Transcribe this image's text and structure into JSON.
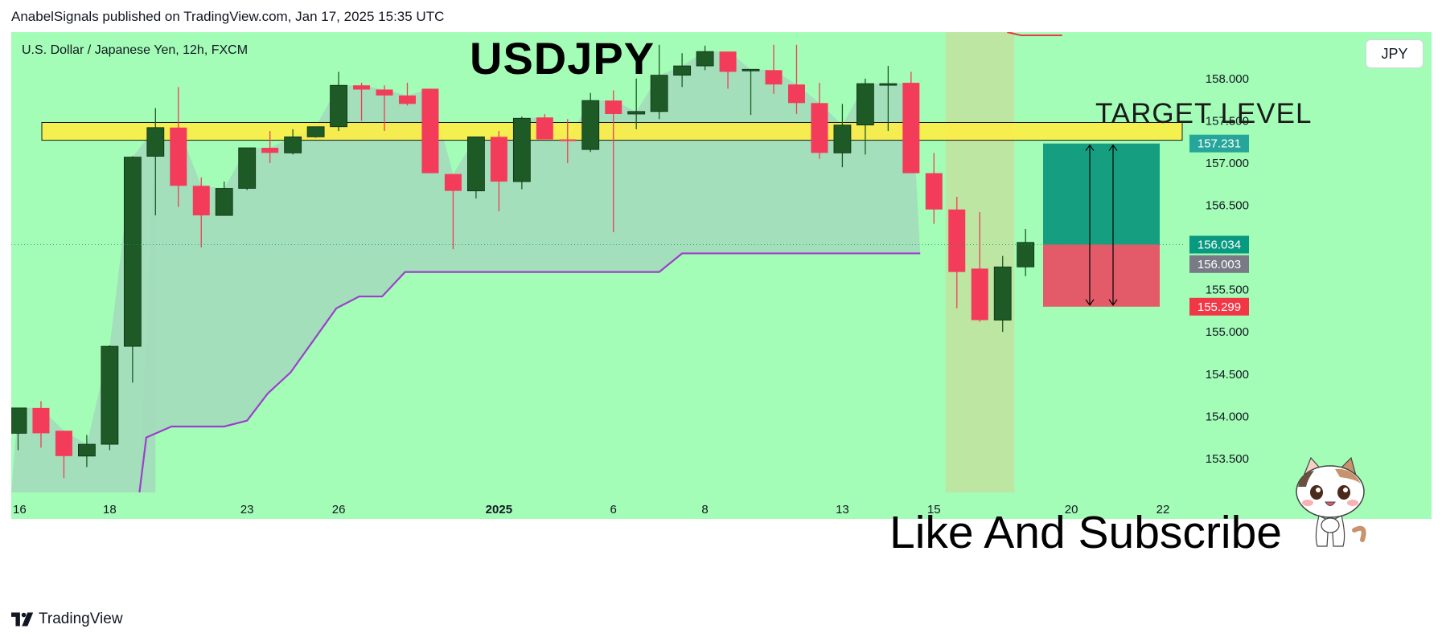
{
  "header": {
    "published_by": "AnabelSignals published on TradingView.com, Jan 17, 2025 15:35 UTC"
  },
  "chart_data": {
    "type": "candlestick",
    "symbol_line": "U.S. Dollar / Japanese Yen, 12h, FXCM",
    "title": "USDJPY",
    "currency": "JPY",
    "annotations": {
      "zone_label": "TARGET LEVEL",
      "cta": "Like And Subscribe"
    },
    "ylim": [
      153.1,
      158.55
    ],
    "y_ticks": [
      "158.000",
      "157.500",
      "157.000",
      "156.500",
      "156.000",
      "155.500",
      "155.000",
      "154.500",
      "154.000",
      "153.500"
    ],
    "x_tick_labels": [
      {
        "label": "16",
        "bar": 0
      },
      {
        "label": "18",
        "bar": 4
      },
      {
        "label": "23",
        "bar": 10
      },
      {
        "label": "26",
        "bar": 14
      },
      {
        "label": "2025",
        "bar": 21,
        "bold": true
      },
      {
        "label": "6",
        "bar": 26
      },
      {
        "label": "8",
        "bar": 30
      },
      {
        "label": "13",
        "bar": 36
      },
      {
        "label": "15",
        "bar": 40
      },
      {
        "label": "20",
        "bar": 46
      },
      {
        "label": "22",
        "bar": 50
      }
    ],
    "price_labels": [
      {
        "value": "157.231",
        "price": 157.231,
        "color": "#26a69a"
      },
      {
        "value": "156.034",
        "price": 156.034,
        "color": "#089981"
      },
      {
        "value": "156.003",
        "price": 156.003,
        "color": "#787b86",
        "offset": 21
      },
      {
        "value": "155.299",
        "price": 155.299,
        "color": "#f23645"
      }
    ],
    "current_price": 156.034,
    "resistance_zone": [
      157.27,
      157.48
    ],
    "position": {
      "entry": 156.034,
      "take_profit": 157.231,
      "stop_loss": 155.299
    },
    "candles": [
      {
        "o": 153.8,
        "h": 154.1,
        "l": 153.6,
        "c": 154.1
      },
      {
        "o": 154.1,
        "h": 154.18,
        "l": 153.63,
        "c": 153.8
      },
      {
        "o": 153.83,
        "h": 153.83,
        "l": 153.27,
        "c": 153.53
      },
      {
        "o": 153.53,
        "h": 153.78,
        "l": 153.4,
        "c": 153.67
      },
      {
        "o": 153.67,
        "h": 154.84,
        "l": 153.6,
        "c": 154.83
      },
      {
        "o": 154.83,
        "h": 157.08,
        "l": 154.4,
        "c": 157.07
      },
      {
        "o": 157.08,
        "h": 157.65,
        "l": 156.38,
        "c": 157.42
      },
      {
        "o": 157.42,
        "h": 157.9,
        "l": 156.48,
        "c": 156.73
      },
      {
        "o": 156.73,
        "h": 156.83,
        "l": 156.0,
        "c": 156.38
      },
      {
        "o": 156.38,
        "h": 156.78,
        "l": 156.38,
        "c": 156.7
      },
      {
        "o": 156.7,
        "h": 157.18,
        "l": 156.68,
        "c": 157.18
      },
      {
        "o": 157.18,
        "h": 157.38,
        "l": 157.0,
        "c": 157.12
      },
      {
        "o": 157.12,
        "h": 157.4,
        "l": 157.1,
        "c": 157.31
      },
      {
        "o": 157.31,
        "h": 157.4,
        "l": 157.3,
        "c": 157.43
      },
      {
        "o": 157.43,
        "h": 158.08,
        "l": 157.38,
        "c": 157.92
      },
      {
        "o": 157.92,
        "h": 157.95,
        "l": 157.5,
        "c": 157.87
      },
      {
        "o": 157.87,
        "h": 157.92,
        "l": 157.38,
        "c": 157.8
      },
      {
        "o": 157.8,
        "h": 157.95,
        "l": 157.68,
        "c": 157.7
      },
      {
        "o": 157.88,
        "h": 157.88,
        "l": 156.88,
        "c": 156.88
      },
      {
        "o": 156.87,
        "h": 156.87,
        "l": 155.98,
        "c": 156.67
      },
      {
        "o": 156.67,
        "h": 157.31,
        "l": 156.58,
        "c": 157.31
      },
      {
        "o": 157.31,
        "h": 157.38,
        "l": 156.43,
        "c": 156.78
      },
      {
        "o": 156.78,
        "h": 157.55,
        "l": 156.69,
        "c": 157.53
      },
      {
        "o": 157.54,
        "h": 157.58,
        "l": 157.28,
        "c": 157.28
      },
      {
        "o": 157.28,
        "h": 157.52,
        "l": 157.0,
        "c": 157.26
      },
      {
        "o": 157.16,
        "h": 157.83,
        "l": 157.13,
        "c": 157.74
      },
      {
        "o": 157.74,
        "h": 157.86,
        "l": 156.18,
        "c": 157.58
      },
      {
        "o": 157.58,
        "h": 158.0,
        "l": 157.4,
        "c": 157.61
      },
      {
        "o": 157.61,
        "h": 158.4,
        "l": 157.52,
        "c": 158.04
      },
      {
        "o": 158.04,
        "h": 158.3,
        "l": 157.9,
        "c": 158.15
      },
      {
        "o": 158.15,
        "h": 158.39,
        "l": 158.1,
        "c": 158.32
      },
      {
        "o": 158.32,
        "h": 158.32,
        "l": 157.88,
        "c": 158.08
      },
      {
        "o": 158.1,
        "h": 158.1,
        "l": 157.57,
        "c": 158.11
      },
      {
        "o": 158.1,
        "h": 158.4,
        "l": 157.82,
        "c": 157.93
      },
      {
        "o": 157.93,
        "h": 158.4,
        "l": 157.58,
        "c": 157.71
      },
      {
        "o": 157.71,
        "h": 157.95,
        "l": 157.05,
        "c": 157.12
      },
      {
        "o": 157.12,
        "h": 157.7,
        "l": 156.95,
        "c": 157.45
      },
      {
        "o": 157.45,
        "h": 158.0,
        "l": 157.1,
        "c": 157.94
      },
      {
        "o": 157.94,
        "h": 158.15,
        "l": 157.38,
        "c": 157.94
      },
      {
        "o": 157.95,
        "h": 158.08,
        "l": 156.88,
        "c": 156.88
      },
      {
        "o": 156.88,
        "h": 157.12,
        "l": 156.28,
        "c": 156.45
      },
      {
        "o": 156.45,
        "h": 156.6,
        "l": 155.28,
        "c": 155.71
      },
      {
        "o": 155.75,
        "h": 156.42,
        "l": 155.12,
        "c": 155.14
      },
      {
        "o": 155.14,
        "h": 155.9,
        "l": 155.0,
        "c": 155.77
      },
      {
        "o": 155.77,
        "h": 156.22,
        "l": 155.66,
        "c": 156.06
      }
    ],
    "stop_line": [
      {
        "bar": 5.3,
        "price": 153.1
      },
      {
        "bar": 5.6,
        "price": 153.75
      },
      {
        "bar": 6.7,
        "price": 153.88
      },
      {
        "bar": 9.0,
        "price": 153.88
      },
      {
        "bar": 10.0,
        "price": 153.95
      },
      {
        "bar": 10.9,
        "price": 154.27
      },
      {
        "bar": 11.9,
        "price": 154.52
      },
      {
        "bar": 13.9,
        "price": 155.28
      },
      {
        "bar": 14.9,
        "price": 155.42
      },
      {
        "bar": 15.9,
        "price": 155.42
      },
      {
        "bar": 16.9,
        "price": 155.71
      },
      {
        "bar": 28.0,
        "price": 155.71
      },
      {
        "bar": 29.0,
        "price": 155.93
      },
      {
        "bar": 39.4,
        "price": 155.93
      }
    ],
    "colors": {
      "background": "#a3fdb7",
      "up_candle": "#1e5a26",
      "down_candle": "#f23c59",
      "area_fill": "#a3dbbb",
      "stop_line": "#9c3fca",
      "zone": "#ffee42",
      "tp_box": "#159f80",
      "sl_box": "#e35b68",
      "highlight": "#c2e2a0"
    }
  },
  "brand": {
    "footer": "TradingView",
    "mascot_icon": "cat-mascot-icon",
    "logo_icon": "tradingview-logo-icon"
  }
}
